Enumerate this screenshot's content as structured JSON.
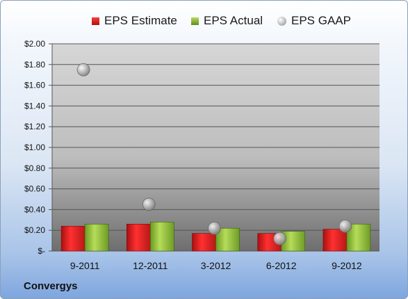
{
  "chart_data": {
    "type": "bar",
    "categories": [
      "9-2011",
      "12-2011",
      "3-2012",
      "6-2012",
      "9-2012"
    ],
    "series": [
      {
        "name": "EPS Estimate",
        "kind": "bar",
        "color": "#d42020",
        "values": [
          0.24,
          0.26,
          0.17,
          0.17,
          0.21
        ]
      },
      {
        "name": "EPS Actual",
        "kind": "bar",
        "color": "#8ab63a",
        "values": [
          0.26,
          0.28,
          0.22,
          0.19,
          0.26
        ]
      },
      {
        "name": "EPS GAAP",
        "kind": "scatter",
        "color": "#a8a8a8",
        "values": [
          1.75,
          0.45,
          0.22,
          0.12,
          0.24
        ]
      }
    ],
    "yticks": [
      "$-",
      "$0.20",
      "$0.40",
      "$0.60",
      "$0.80",
      "$1.00",
      "$1.20",
      "$1.40",
      "$1.60",
      "$1.80",
      "$2.00"
    ],
    "ylim": [
      0,
      2.0
    ],
    "grid": true,
    "legend": "top"
  },
  "company": "Convergys"
}
